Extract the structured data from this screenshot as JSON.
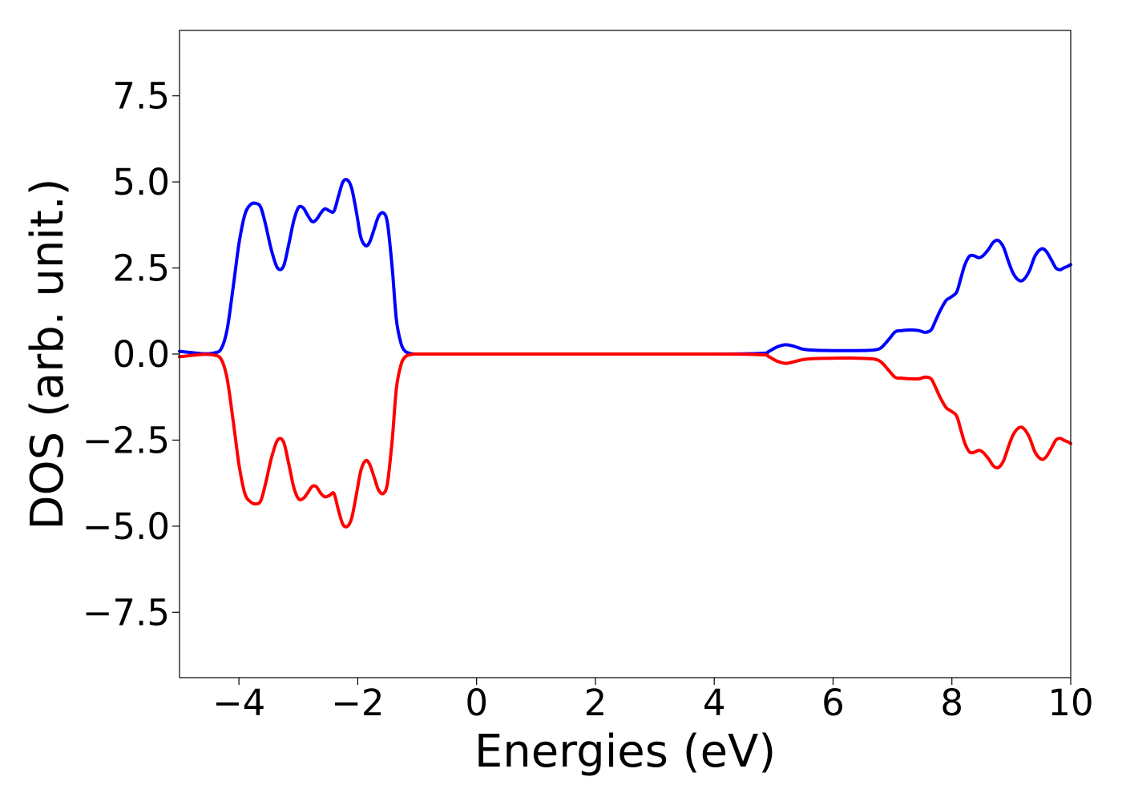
{
  "chart_data": {
    "type": "line",
    "title": "",
    "xlabel": "Energies (eV)",
    "ylabel": "DOS (arb. unit.)",
    "xlim": [
      -5,
      10
    ],
    "ylim": [
      -9.4,
      9.4
    ],
    "grid": false,
    "legend": "none",
    "x_ticks": [
      {
        "value": -4,
        "label": "−4"
      },
      {
        "value": -2,
        "label": "−2"
      },
      {
        "value": 0,
        "label": "0"
      },
      {
        "value": 2,
        "label": "2"
      },
      {
        "value": 4,
        "label": "4"
      },
      {
        "value": 6,
        "label": "6"
      },
      {
        "value": 8,
        "label": "8"
      },
      {
        "value": 10,
        "label": "10"
      }
    ],
    "y_ticks": [
      {
        "value": 7.5,
        "label": "7.5"
      },
      {
        "value": 5.0,
        "label": "5.0"
      },
      {
        "value": 2.5,
        "label": "2.5"
      },
      {
        "value": 0.0,
        "label": "0.0"
      },
      {
        "value": -2.5,
        "label": "−2.5"
      },
      {
        "value": -5.0,
        "label": "−5.0"
      },
      {
        "value": -7.5,
        "label": "−7.5"
      }
    ],
    "series": [
      {
        "color": "#0000ff",
        "x": [
          -5.0,
          -4.6,
          -4.42,
          -4.3,
          -4.2,
          -4.1,
          -4.0,
          -3.9,
          -3.8,
          -3.7,
          -3.63,
          -3.55,
          -3.45,
          -3.35,
          -3.25,
          -3.16,
          -3.08,
          -3.0,
          -2.92,
          -2.85,
          -2.77,
          -2.7,
          -2.62,
          -2.55,
          -2.47,
          -2.4,
          -2.33,
          -2.25,
          -2.17,
          -2.1,
          -2.02,
          -1.95,
          -1.87,
          -1.8,
          -1.72,
          -1.65,
          -1.57,
          -1.5,
          -1.42,
          -1.35,
          -1.27,
          -1.2,
          -1.12,
          -1.05,
          -0.97,
          -0.9,
          -0.82,
          -0.75,
          -0.65,
          -0.55,
          -0.45,
          0.0,
          2.0,
          4.0,
          4.8,
          4.92,
          5.05,
          5.2,
          5.35,
          5.5,
          5.7,
          6.0,
          6.4,
          6.7,
          6.82,
          6.95,
          7.05,
          7.15,
          7.3,
          7.45,
          7.55,
          7.65,
          7.72,
          7.8,
          7.9,
          7.98,
          8.08,
          8.15,
          8.22,
          8.3,
          8.38,
          8.45,
          8.52,
          8.62,
          8.7,
          8.78,
          8.87,
          8.95,
          9.03,
          9.12,
          9.2,
          9.3,
          9.4,
          9.5,
          9.58,
          9.67,
          9.75,
          9.82,
          9.88,
          9.95,
          10.0
        ],
        "values": [
          0.08,
          0.01,
          0.03,
          0.15,
          0.7,
          1.9,
          3.2,
          4.05,
          4.35,
          4.37,
          4.25,
          3.75,
          3.0,
          2.5,
          2.55,
          3.2,
          3.85,
          4.25,
          4.25,
          4.05,
          3.85,
          3.9,
          4.1,
          4.22,
          4.15,
          4.15,
          4.55,
          5.0,
          5.05,
          4.8,
          4.1,
          3.4,
          3.15,
          3.25,
          3.65,
          4.0,
          4.1,
          3.8,
          2.5,
          1.0,
          0.3,
          0.08,
          0.02,
          0.0,
          0.0,
          0.0,
          0.0,
          0.0,
          0.0,
          0.0,
          0.0,
          0.0,
          0.0,
          0.0,
          0.02,
          0.08,
          0.2,
          0.27,
          0.22,
          0.14,
          0.11,
          0.1,
          0.1,
          0.12,
          0.2,
          0.45,
          0.65,
          0.68,
          0.7,
          0.68,
          0.63,
          0.7,
          0.95,
          1.25,
          1.55,
          1.65,
          1.8,
          2.2,
          2.6,
          2.85,
          2.85,
          2.8,
          2.85,
          3.05,
          3.25,
          3.3,
          3.1,
          2.7,
          2.35,
          2.15,
          2.15,
          2.4,
          2.85,
          3.05,
          3.0,
          2.75,
          2.5,
          2.45,
          2.5,
          2.55,
          2.6
        ]
      },
      {
        "color": "#ff0000",
        "x": [
          -5.0,
          -4.6,
          -4.42,
          -4.3,
          -4.2,
          -4.1,
          -4.0,
          -3.9,
          -3.8,
          -3.7,
          -3.63,
          -3.55,
          -3.45,
          -3.35,
          -3.25,
          -3.16,
          -3.08,
          -3.0,
          -2.92,
          -2.85,
          -2.77,
          -2.7,
          -2.62,
          -2.55,
          -2.47,
          -2.4,
          -2.33,
          -2.25,
          -2.17,
          -2.1,
          -2.02,
          -1.95,
          -1.87,
          -1.8,
          -1.72,
          -1.65,
          -1.57,
          -1.5,
          -1.42,
          -1.35,
          -1.27,
          -1.2,
          -1.12,
          -1.05,
          -0.97,
          -0.9,
          -0.82,
          -0.75,
          -0.65,
          -0.55,
          -0.45,
          0.0,
          2.0,
          4.0,
          4.8,
          4.92,
          5.05,
          5.2,
          5.35,
          5.5,
          5.7,
          6.0,
          6.4,
          6.7,
          6.82,
          6.95,
          7.05,
          7.15,
          7.3,
          7.45,
          7.55,
          7.65,
          7.72,
          7.8,
          7.9,
          7.98,
          8.08,
          8.15,
          8.22,
          8.3,
          8.38,
          8.45,
          8.52,
          8.62,
          8.7,
          8.78,
          8.87,
          8.95,
          9.03,
          9.12,
          9.2,
          9.3,
          9.4,
          9.5,
          9.58,
          9.67,
          9.75,
          9.82,
          9.88,
          9.95,
          10.0
        ],
        "values": [
          -0.08,
          -0.01,
          -0.03,
          -0.15,
          -0.7,
          -1.9,
          -3.2,
          -4.05,
          -4.3,
          -4.35,
          -4.25,
          -3.75,
          -3.0,
          -2.5,
          -2.55,
          -3.2,
          -3.85,
          -4.2,
          -4.2,
          -4.05,
          -3.85,
          -3.85,
          -4.05,
          -4.15,
          -4.1,
          -4.05,
          -4.5,
          -4.95,
          -5.0,
          -4.75,
          -4.05,
          -3.4,
          -3.1,
          -3.2,
          -3.6,
          -3.95,
          -4.05,
          -3.75,
          -2.5,
          -1.0,
          -0.3,
          -0.08,
          -0.02,
          0.0,
          0.0,
          0.0,
          0.0,
          0.0,
          0.0,
          0.0,
          0.0,
          0.0,
          0.0,
          0.0,
          -0.02,
          -0.08,
          -0.2,
          -0.27,
          -0.22,
          -0.16,
          -0.13,
          -0.12,
          -0.12,
          -0.15,
          -0.25,
          -0.5,
          -0.68,
          -0.7,
          -0.72,
          -0.72,
          -0.67,
          -0.72,
          -0.95,
          -1.25,
          -1.55,
          -1.65,
          -1.8,
          -2.2,
          -2.6,
          -2.85,
          -2.85,
          -2.8,
          -2.85,
          -3.05,
          -3.25,
          -3.3,
          -3.1,
          -2.7,
          -2.35,
          -2.15,
          -2.15,
          -2.4,
          -2.85,
          -3.05,
          -3.0,
          -2.75,
          -2.5,
          -2.45,
          -2.5,
          -2.55,
          -2.6
        ]
      }
    ]
  }
}
